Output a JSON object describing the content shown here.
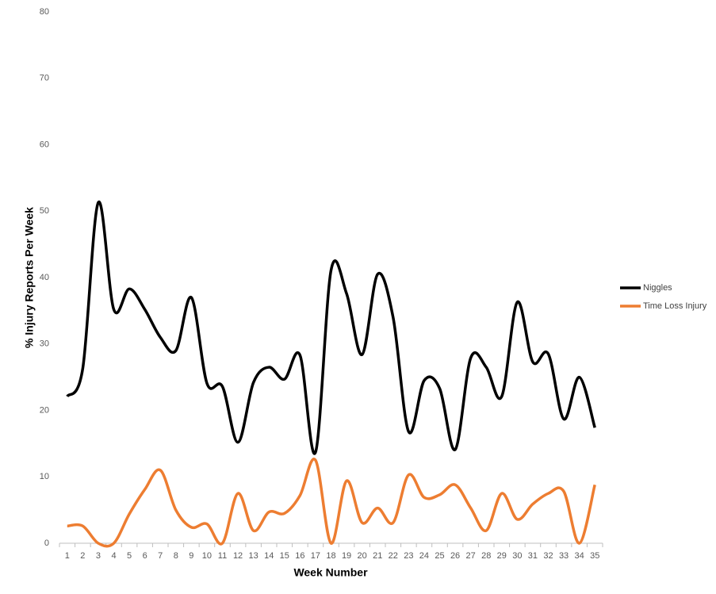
{
  "chart_data": {
    "type": "line",
    "x_label": "Week Number",
    "y_label": "% Injury Reports Per Week",
    "categories": [
      "1",
      "2",
      "3",
      "4",
      "5",
      "6",
      "7",
      "8",
      "9",
      "10",
      "11",
      "12",
      "13",
      "14",
      "15",
      "16",
      "17",
      "18",
      "19",
      "20",
      "21",
      "22",
      "23",
      "24",
      "25",
      "26",
      "27",
      "28",
      "29",
      "30",
      "31",
      "32",
      "33",
      "34",
      "35"
    ],
    "series": [
      {
        "name": "Niggles",
        "color": "#000000",
        "values": [
          22.1,
          26.3,
          51.3,
          35.2,
          38.3,
          35.2,
          31,
          29,
          37,
          24.1,
          23.6,
          15.2,
          24.2,
          26.5,
          24.7,
          28.3,
          13.7,
          41.1,
          37.6,
          28.4,
          40.5,
          34,
          16.8,
          24.5,
          23.3,
          14.1,
          27.9,
          26.5,
          22.1,
          36.3,
          27.3,
          28.5,
          18.7,
          25,
          17.4
        ]
      },
      {
        "name": "Time Loss Injury",
        "color": "#ed7d31",
        "values": [
          2.6,
          2.6,
          0,
          0,
          4.4,
          8.1,
          11,
          5,
          2.4,
          2.9,
          0,
          7.5,
          1.9,
          4.7,
          4.5,
          7.2,
          12.5,
          0,
          9.4,
          3.1,
          5.3,
          3.1,
          10.3,
          6.9,
          7.3,
          8.8,
          5.3,
          1.9,
          7.5,
          3.6,
          5.9,
          7.5,
          7.8,
          0,
          8.8
        ]
      }
    ],
    "ylim": [
      0,
      80
    ],
    "yticks": [
      0,
      10,
      20,
      30,
      40,
      50,
      60,
      70,
      80
    ],
    "grid": false,
    "legend": "right"
  }
}
